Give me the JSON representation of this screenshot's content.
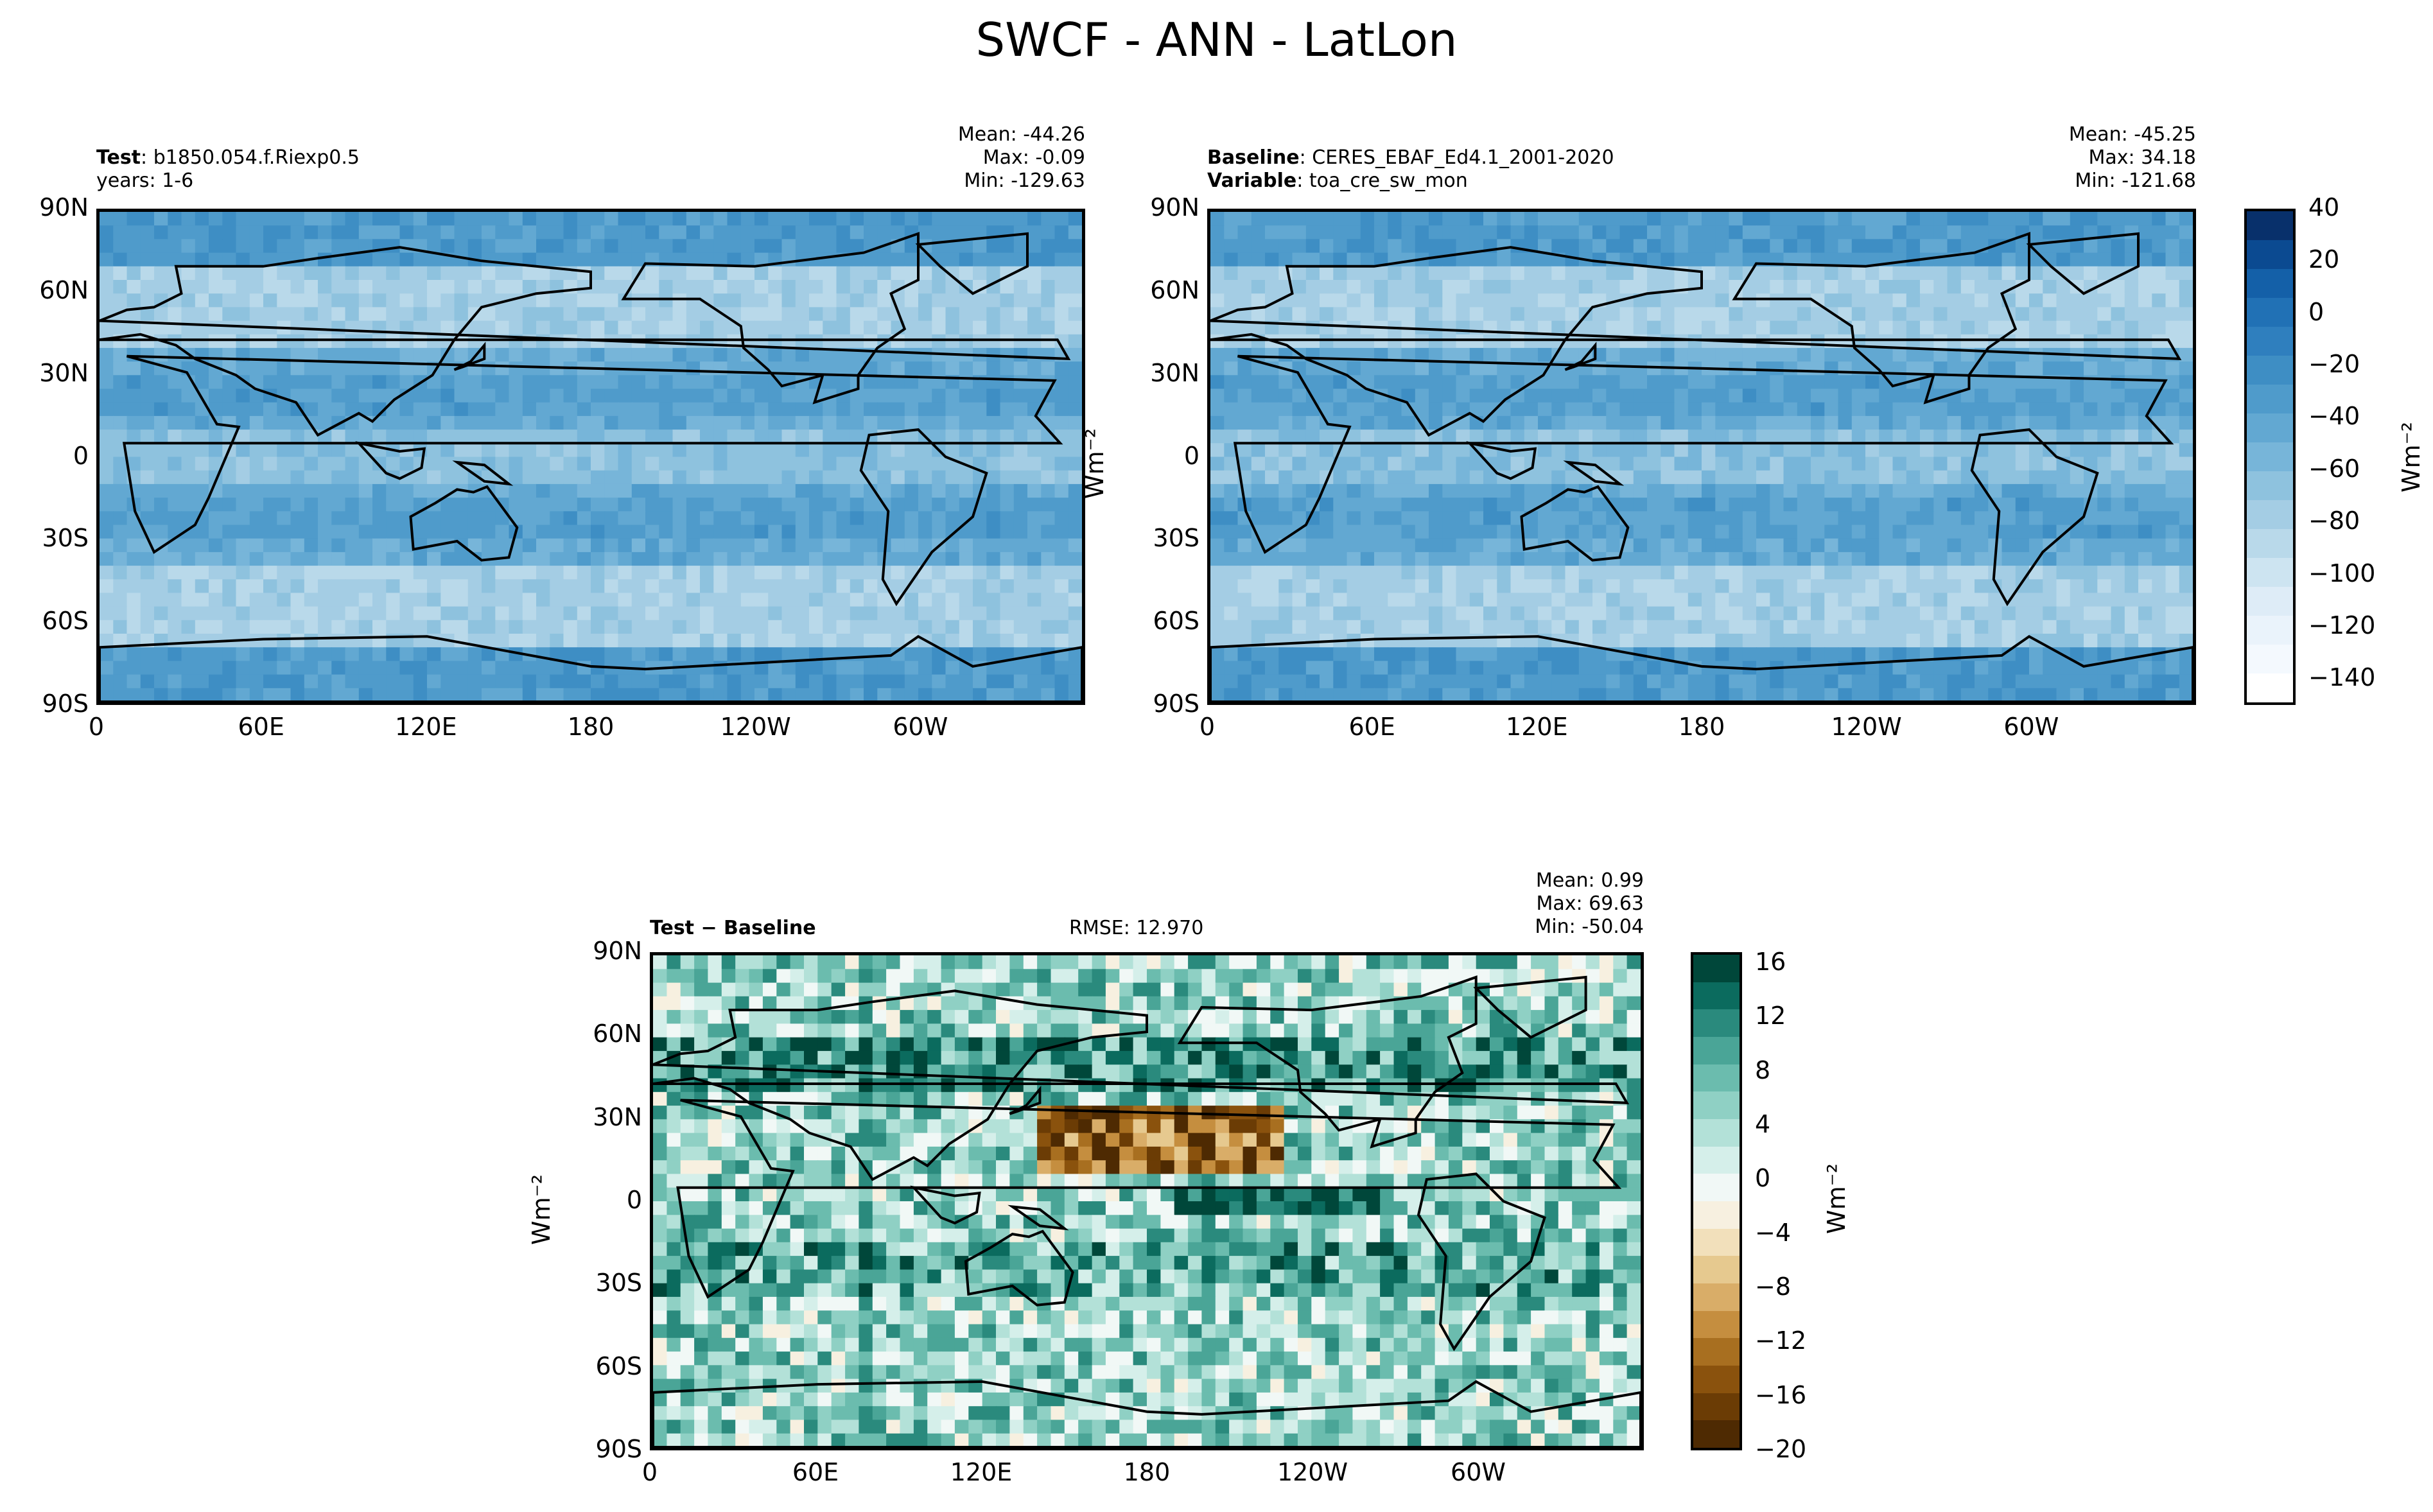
{
  "figure_title": "SWCF - ANN - LatLon",
  "chart_data": [
    {
      "type": "heatmap",
      "panel": "test",
      "label_key": "Test",
      "label_value": "b1850.054.f.Riexp0.5",
      "label2_value": "years: 1-6",
      "mean": "Mean: -44.26",
      "max": "Max: -0.09",
      "min": "Min: -129.63",
      "yticks": [
        "90N",
        "60N",
        "30N",
        "0",
        "30S",
        "60S",
        "90S"
      ],
      "xticks": [
        "0",
        "60E",
        "120E",
        "180",
        "120W",
        "60W"
      ],
      "units": "Wm⁻²",
      "colormap": "Blues_r",
      "value_range": [
        -150,
        40
      ]
    },
    {
      "type": "heatmap",
      "panel": "baseline",
      "label_key": "Baseline",
      "label_value": "CERES_EBAF_Ed4.1_2001-2020",
      "label2_key": "Variable",
      "label2_value": "toa_cre_sw_mon",
      "mean": "Mean: -45.25",
      "max": "Max: 34.18",
      "min": "Min: -121.68",
      "yticks": [
        "90N",
        "60N",
        "30N",
        "0",
        "30S",
        "60S",
        "90S"
      ],
      "xticks": [
        "0",
        "60E",
        "120E",
        "180",
        "120W",
        "60W"
      ],
      "units": "Wm⁻²",
      "colormap": "Blues_r",
      "value_range": [
        -150,
        40
      ]
    },
    {
      "type": "heatmap",
      "panel": "difference",
      "label_key": "Test − Baseline",
      "rmse": "RMSE: 12.970",
      "mean": "Mean:  0.99",
      "max": "Max: 69.63",
      "min": "Min: -50.04",
      "yticks": [
        "90N",
        "60N",
        "30N",
        "0",
        "30S",
        "60S",
        "90S"
      ],
      "xticks": [
        "0",
        "60E",
        "120E",
        "180",
        "120W",
        "60W"
      ],
      "units": "Wm⁻²",
      "colormap": "BrBG",
      "value_range": [
        -20,
        18
      ]
    }
  ],
  "colorbars": {
    "top": {
      "ticks": [
        "40",
        "20",
        "0",
        "−20",
        "−40",
        "−60",
        "−80",
        "−100",
        "−120",
        "−140"
      ],
      "units": "Wm⁻²",
      "colors": [
        "#08306b",
        "#0b4a91",
        "#1460a8",
        "#2171b5",
        "#2f7fbe",
        "#3e8ec4",
        "#4f9bcb",
        "#62a8d2",
        "#77b5d9",
        "#8ec2de",
        "#a4cde4",
        "#b9d9ea",
        "#cde4f1",
        "#deecf7",
        "#eaf3fb",
        "#f4f9fe",
        "#ffffff"
      ]
    },
    "bottom": {
      "ticks": [
        "16",
        "12",
        "8",
        "4",
        "0",
        "−4",
        "−8",
        "−12",
        "−16",
        "−20"
      ],
      "units": "Wm⁻²",
      "colors": [
        "#00473a",
        "#0b6b5e",
        "#2a8a7d",
        "#4aa597",
        "#6bbcae",
        "#8fd0c4",
        "#b3e1d8",
        "#d5efea",
        "#f1f8f6",
        "#f7f0e0",
        "#f2e0bb",
        "#e6c98f",
        "#d9ad68",
        "#c58e3f",
        "#a86f20",
        "#8a520d",
        "#6b3c05",
        "#4e2a02"
      ]
    }
  }
}
